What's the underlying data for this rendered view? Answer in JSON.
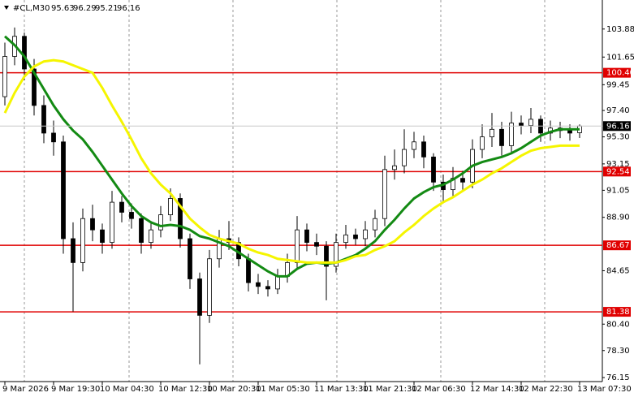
{
  "header": {
    "symbol": "#CL,M30",
    "ohlc": [
      95.63,
      96.29,
      95.21,
      96.16
    ]
  },
  "chart_data": {
    "type": "candlestick",
    "categories": [
      "9 Mar 2026",
      null,
      null,
      null,
      null,
      "9 Mar 19:30",
      null,
      null,
      null,
      null,
      "10 Mar 04:30",
      null,
      null,
      null,
      null,
      null,
      "10 Mar 12:30",
      null,
      null,
      null,
      null,
      "10 Mar 20:30",
      null,
      null,
      null,
      null,
      "11 Mar 05:30",
      null,
      null,
      null,
      null,
      null,
      "11 Mar 13:30",
      null,
      null,
      null,
      null,
      "11 Mar 21:30",
      null,
      null,
      null,
      null,
      "12 Mar 06:30",
      null,
      null,
      null,
      null,
      null,
      "12 Mar 14:30",
      null,
      null,
      null,
      null,
      "12 Mar 22:30",
      null,
      null,
      null,
      null,
      null,
      "13 Mar 07:30"
    ],
    "open": [
      98.5,
      101.7,
      103.3,
      100.7,
      97.8,
      95.6,
      94.9,
      87.2,
      85.3,
      88.8,
      87.9,
      86.9,
      90.1,
      89.3,
      88.8,
      86.9,
      87.9,
      89.1,
      90.4,
      87.2,
      84.0,
      81.1,
      85.6,
      87.2,
      86.9,
      85.6,
      83.7,
      83.4,
      83.2,
      84.2,
      85.3,
      87.9,
      86.9,
      86.6,
      85.0,
      86.9,
      87.5,
      87.2,
      87.9,
      88.8,
      92.7,
      93.0,
      94.3,
      94.9,
      93.7,
      91.7,
      91.1,
      92.0,
      91.7,
      94.3,
      95.3,
      95.9,
      94.6,
      96.4,
      96.2,
      96.7,
      95.6,
      96.0,
      95.8,
      95.63
    ],
    "high": [
      102.8,
      104.0,
      103.6,
      101.5,
      98.6,
      96.6,
      95.4,
      88.5,
      89.6,
      89.9,
      88.4,
      91.0,
      90.6,
      90.0,
      89.2,
      88.6,
      89.8,
      91.2,
      90.8,
      87.6,
      84.5,
      86.3,
      87.9,
      88.6,
      87.3,
      86.0,
      84.4,
      83.9,
      84.8,
      86.0,
      89.0,
      88.4,
      87.6,
      87.0,
      87.6,
      88.3,
      88.0,
      88.6,
      89.5,
      93.8,
      94.3,
      95.9,
      95.7,
      95.4,
      94.0,
      92.3,
      92.9,
      92.6,
      95.1,
      96.3,
      97.2,
      96.5,
      97.3,
      97.0,
      97.6,
      97.0,
      96.6,
      96.5,
      96.3,
      96.29
    ],
    "low": [
      97.8,
      101.0,
      99.8,
      97.0,
      94.8,
      93.8,
      86.0,
      81.4,
      84.6,
      87.0,
      86.0,
      86.4,
      88.5,
      88.0,
      86.0,
      86.4,
      87.3,
      88.6,
      86.5,
      83.2,
      77.2,
      80.5,
      84.9,
      86.3,
      85.0,
      83.0,
      82.8,
      82.6,
      82.8,
      83.7,
      84.8,
      86.2,
      85.9,
      82.3,
      84.5,
      86.4,
      86.7,
      86.6,
      87.3,
      88.2,
      91.9,
      92.4,
      93.6,
      92.8,
      91.0,
      90.2,
      90.6,
      91.0,
      91.2,
      93.6,
      94.5,
      93.8,
      94.0,
      95.5,
      95.6,
      94.9,
      95.0,
      95.2,
      95.0,
      95.21
    ],
    "close": [
      101.7,
      103.3,
      100.7,
      97.8,
      95.6,
      94.9,
      87.2,
      85.3,
      88.8,
      87.9,
      86.9,
      90.1,
      89.3,
      88.8,
      86.9,
      87.9,
      89.1,
      90.4,
      87.2,
      84.0,
      81.1,
      85.6,
      87.2,
      86.9,
      85.6,
      83.7,
      83.4,
      83.2,
      84.2,
      85.3,
      87.9,
      86.9,
      86.6,
      85.0,
      86.9,
      87.5,
      87.2,
      87.9,
      88.8,
      92.7,
      93.0,
      94.3,
      94.9,
      93.7,
      91.7,
      91.1,
      92.0,
      91.7,
      94.3,
      95.3,
      95.9,
      94.6,
      96.4,
      96.2,
      96.7,
      95.6,
      96.0,
      95.8,
      95.6,
      96.16
    ],
    "up_color": "#ffffff",
    "down_color": "#000000",
    "outline_color": "#000000",
    "series": [
      {
        "color": "#138a13",
        "values": [
          103.3,
          102.6,
          101.7,
          100.4,
          99.1,
          97.8,
          96.7,
          95.8,
          95.1,
          94.1,
          93.0,
          91.9,
          90.8,
          89.8,
          89.0,
          88.5,
          88.2,
          88.3,
          88.2,
          87.9,
          87.4,
          87.2,
          86.9,
          86.6,
          86.1,
          85.6,
          85.1,
          84.6,
          84.2,
          84.2,
          84.8,
          85.2,
          85.3,
          85.2,
          85.3,
          85.6,
          85.9,
          86.4,
          87.0,
          87.9,
          88.7,
          89.6,
          90.4,
          90.9,
          91.3,
          91.5,
          91.9,
          92.4,
          93.0,
          93.3,
          93.5,
          93.7,
          94.0,
          94.4,
          94.9,
          95.4,
          95.7,
          95.9,
          95.9,
          95.9
        ]
      },
      {
        "color": "#f5f500",
        "values": [
          97.2,
          98.8,
          100.1,
          100.9,
          101.3,
          101.4,
          101.3,
          101.0,
          100.7,
          100.4,
          99.2,
          97.8,
          96.5,
          95.1,
          93.6,
          92.4,
          91.5,
          90.8,
          89.8,
          88.8,
          88.1,
          87.5,
          87.2,
          87.0,
          86.8,
          86.4,
          86.1,
          85.9,
          85.6,
          85.5,
          85.4,
          85.3,
          85.3,
          85.3,
          85.3,
          85.5,
          85.8,
          85.9,
          86.3,
          86.6,
          87.0,
          87.7,
          88.3,
          89.0,
          89.6,
          90.1,
          90.5,
          91.0,
          91.5,
          91.9,
          92.4,
          92.8,
          93.3,
          93.8,
          94.2,
          94.4,
          94.5,
          94.6,
          94.6,
          94.6
        ]
      }
    ],
    "ylim": [
      75.83,
      106.19
    ],
    "yticks": [
      103.88,
      101.65,
      99.45,
      {
        "value": 97.4,
        "label": "97.40"
      },
      {
        "value": 95.3,
        "label": "95.30"
      },
      93.15,
      91.05,
      {
        "value": 88.9,
        "label": "88.90"
      },
      84.65,
      {
        "value": 80.4,
        "label": "80.40"
      },
      {
        "value": 78.3,
        "label": "78.30"
      },
      76.15
    ],
    "levels": [
      {
        "value": 100.4,
        "label": "100.40"
      },
      92.54,
      86.67,
      81.38
    ],
    "level_color": "#e00000",
    "current_price": 96.16
  }
}
